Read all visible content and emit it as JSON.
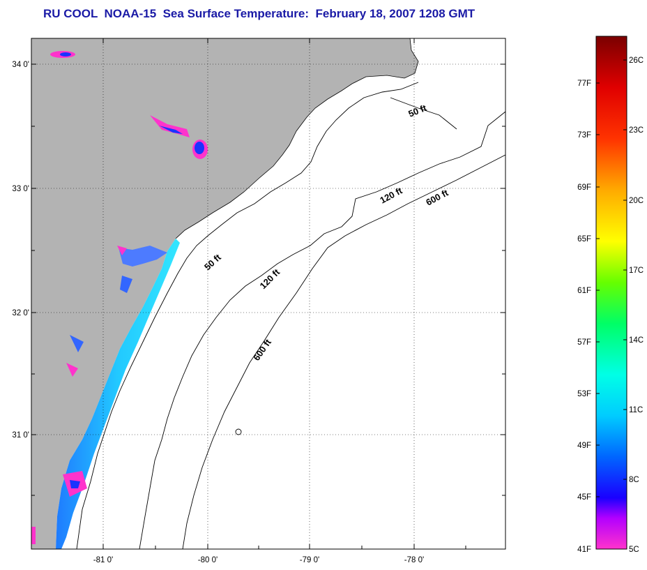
{
  "title": "RU COOL  NOAA-15  Sea Surface Temperature:  February 18, 2007 1208 GMT",
  "map": {
    "lon_ticks": [
      "-81 0'",
      "-80 0'",
      "-79 0'",
      "-78 0'"
    ],
    "lat_ticks": [
      "34 0'",
      "33 0'",
      "32 0'",
      "31 0'"
    ],
    "contour_labels": [
      "50 ft",
      "120 ft",
      "600 ft",
      "50 ft",
      "120 ft",
      "600 ft"
    ]
  },
  "colorbar": {
    "fahrenheit_labels": [
      "77F",
      "73F",
      "69F",
      "65F",
      "61F",
      "57F",
      "53F",
      "49F",
      "45F",
      "41F"
    ],
    "celsius_labels": [
      "26C",
      "23C",
      "20C",
      "17C",
      "14C",
      "11C",
      "8C",
      "5C"
    ]
  },
  "colors": {
    "land": "#b3b3b3",
    "title": "#1a1aa6",
    "sst_cold": "#ff33cc",
    "sst_mid": "#00e5ff"
  }
}
